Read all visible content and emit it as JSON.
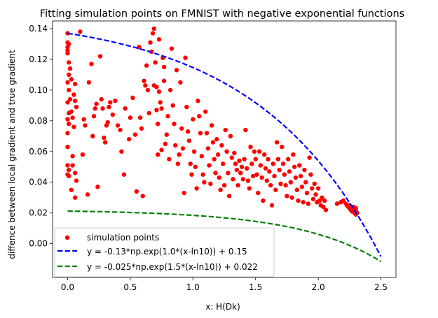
{
  "chart_data": {
    "type": "scatter",
    "title": "Fitting simulation points on FMNIST with negative exponential functions",
    "xlabel": "x: H(Dk)",
    "ylabel": "diffence between local gradient and true gradient",
    "xlim": [
      -0.12,
      2.62
    ],
    "ylim": [
      -0.022,
      0.145
    ],
    "x_ticks": [
      0.0,
      0.5,
      1.0,
      1.5,
      2.0,
      2.5
    ],
    "x_tick_labels": [
      "0.0",
      "0.5",
      "1.0",
      "1.5",
      "2.0",
      "2.5"
    ],
    "y_ticks": [
      0.0,
      0.02,
      0.04,
      0.06,
      0.08,
      0.1,
      0.12,
      0.14
    ],
    "y_tick_labels": [
      "0.00",
      "0.02",
      "0.04",
      "0.06",
      "0.08",
      "0.10",
      "0.12",
      "0.14"
    ],
    "legend_position": "lower-left",
    "series": [
      {
        "name": "simulation points",
        "kind": "scatter",
        "color": "#ff0000",
        "points": [
          [
            0.0,
            0.137
          ],
          [
            0.0,
            0.131
          ],
          [
            0.0,
            0.128
          ],
          [
            0.0,
            0.126
          ],
          [
            0.0,
            0.124
          ],
          [
            0.01,
            0.13
          ],
          [
            0.01,
            0.118
          ],
          [
            0.01,
            0.11
          ],
          [
            0.0,
            0.105
          ],
          [
            0.01,
            0.1
          ],
          [
            0.0,
            0.092
          ],
          [
            0.01,
            0.085
          ],
          [
            0.0,
            0.081
          ],
          [
            0.01,
            0.078
          ],
          [
            0.0,
            0.072
          ],
          [
            0.0,
            0.063
          ],
          [
            0.0,
            0.051
          ],
          [
            0.01,
            0.048
          ],
          [
            0.0,
            0.045
          ],
          [
            0.01,
            0.044
          ],
          [
            0.02,
            0.114
          ],
          [
            0.03,
            0.107
          ],
          [
            0.02,
            0.094
          ],
          [
            0.03,
            0.086
          ],
          [
            0.04,
            0.082
          ],
          [
            0.05,
            0.097
          ],
          [
            0.06,
            0.104
          ],
          [
            0.06,
            0.093
          ],
          [
            0.07,
            0.089
          ],
          [
            0.05,
            0.076
          ],
          [
            0.04,
            0.057
          ],
          [
            0.04,
            0.051
          ],
          [
            0.06,
            0.046
          ],
          [
            0.07,
            0.041
          ],
          [
            0.03,
            0.035
          ],
          [
            0.06,
            0.03
          ],
          [
            0.1,
            0.138
          ],
          [
            0.13,
            0.081
          ],
          [
            0.14,
            0.077
          ],
          [
            0.12,
            0.058
          ],
          [
            0.16,
            0.032
          ],
          [
            0.17,
            0.105
          ],
          [
            0.19,
            0.117
          ],
          [
            0.2,
            0.07
          ],
          [
            0.21,
            0.083
          ],
          [
            0.22,
            0.088
          ],
          [
            0.23,
            0.091
          ],
          [
            0.24,
            0.037
          ],
          [
            0.26,
            0.122
          ],
          [
            0.27,
            0.094
          ],
          [
            0.28,
            0.088
          ],
          [
            0.29,
            0.069
          ],
          [
            0.3,
            0.066
          ],
          [
            0.31,
            0.077
          ],
          [
            0.32,
            0.079
          ],
          [
            0.33,
            0.089
          ],
          [
            0.34,
            0.092
          ],
          [
            0.36,
            0.084
          ],
          [
            0.38,
            0.093
          ],
          [
            0.4,
            0.077
          ],
          [
            0.42,
            0.074
          ],
          [
            0.43,
            0.06
          ],
          [
            0.45,
            0.045
          ],
          [
            0.46,
            0.088
          ],
          [
            0.49,
            0.068
          ],
          [
            0.5,
            0.082
          ],
          [
            0.52,
            0.095
          ],
          [
            0.54,
            0.071
          ],
          [
            0.55,
            0.034
          ],
          [
            0.57,
            0.128
          ],
          [
            0.58,
            0.082
          ],
          [
            0.59,
            0.075
          ],
          [
            0.6,
            0.031
          ],
          [
            0.61,
            0.106
          ],
          [
            0.62,
            0.103
          ],
          [
            0.63,
            0.116
          ],
          [
            0.64,
            0.1
          ],
          [
            0.65,
            0.085
          ],
          [
            0.66,
            0.131
          ],
          [
            0.67,
            0.125
          ],
          [
            0.68,
            0.137
          ],
          [
            0.69,
            0.14
          ],
          [
            0.69,
            0.103
          ],
          [
            0.7,
            0.118
          ],
          [
            0.71,
            0.102
          ],
          [
            0.71,
            0.087
          ],
          [
            0.72,
            0.078
          ],
          [
            0.72,
            0.058
          ],
          [
            0.73,
            0.133
          ],
          [
            0.73,
            0.099
          ],
          [
            0.74,
            0.092
          ],
          [
            0.75,
            0.088
          ],
          [
            0.75,
            0.061
          ],
          [
            0.76,
            0.121
          ],
          [
            0.77,
            0.115
          ],
          [
            0.77,
            0.106
          ],
          [
            0.78,
            0.065
          ],
          [
            0.79,
            0.071
          ],
          [
            0.8,
            0.083
          ],
          [
            0.81,
            0.055
          ],
          [
            0.82,
            0.1
          ],
          [
            0.83,
            0.127
          ],
          [
            0.84,
            0.09
          ],
          [
            0.85,
            0.078
          ],
          [
            0.86,
            0.064
          ],
          [
            0.87,
            0.113
          ],
          [
            0.88,
            0.052
          ],
          [
            0.89,
            0.058
          ],
          [
            0.9,
            0.105
          ],
          [
            0.91,
            0.075
          ],
          [
            0.92,
            0.062
          ],
          [
            0.93,
            0.033
          ],
          [
            0.94,
            0.121
          ],
          [
            0.95,
            0.089
          ],
          [
            0.96,
            0.073
          ],
          [
            0.97,
            0.067
          ],
          [
            0.98,
            0.052
          ],
          [
            0.99,
            0.045
          ],
          [
            1.0,
            0.081
          ],
          [
            1.01,
            0.06
          ],
          [
            1.02,
            0.05
          ],
          [
            1.03,
            0.036
          ],
          [
            1.04,
            0.093
          ],
          [
            1.05,
            0.083
          ],
          [
            1.06,
            0.072
          ],
          [
            1.07,
            0.057
          ],
          [
            1.08,
            0.045
          ],
          [
            1.09,
            0.04
          ],
          [
            1.1,
            0.086
          ],
          [
            1.11,
            0.072
          ],
          [
            1.12,
            0.062
          ],
          [
            1.13,
            0.051
          ],
          [
            1.14,
            0.039
          ],
          [
            1.15,
            0.077
          ],
          [
            1.16,
            0.066
          ],
          [
            1.17,
            0.055
          ],
          [
            1.18,
            0.046
          ],
          [
            1.19,
            0.068
          ],
          [
            1.2,
            0.058
          ],
          [
            1.21,
            0.043
          ],
          [
            1.22,
            0.035
          ],
          [
            1.23,
            0.064
          ],
          [
            1.24,
            0.052
          ],
          [
            1.25,
            0.038
          ],
          [
            1.26,
            0.074
          ],
          [
            1.27,
            0.06
          ],
          [
            1.28,
            0.046
          ],
          [
            1.29,
            0.031
          ],
          [
            1.3,
            0.07
          ],
          [
            1.31,
            0.056
          ],
          [
            1.32,
            0.042
          ],
          [
            1.33,
            0.059
          ],
          [
            1.34,
            0.052
          ],
          [
            1.35,
            0.048
          ],
          [
            1.36,
            0.038
          ],
          [
            1.37,
            0.054
          ],
          [
            1.38,
            0.046
          ],
          [
            1.39,
            0.05
          ],
          [
            1.4,
            0.042
          ],
          [
            1.41,
            0.055
          ],
          [
            1.42,
            0.074
          ],
          [
            1.43,
            0.049
          ],
          [
            1.44,
            0.041
          ],
          [
            1.45,
            0.036
          ],
          [
            1.46,
            0.063
          ],
          [
            1.47,
            0.052
          ],
          [
            1.48,
            0.044
          ],
          [
            1.49,
            0.06
          ],
          [
            1.5,
            0.055
          ],
          [
            1.51,
            0.045
          ],
          [
            1.52,
            0.033
          ],
          [
            1.53,
            0.06
          ],
          [
            1.54,
            0.051
          ],
          [
            1.55,
            0.043
          ],
          [
            1.56,
            0.028
          ],
          [
            1.57,
            0.058
          ],
          [
            1.58,
            0.049
          ],
          [
            1.59,
            0.041
          ],
          [
            1.6,
            0.055
          ],
          [
            1.61,
            0.047
          ],
          [
            1.62,
            0.038
          ],
          [
            1.63,
            0.025
          ],
          [
            1.64,
            0.052
          ],
          [
            1.65,
            0.044
          ],
          [
            1.66,
            0.035
          ],
          [
            1.67,
            0.066
          ],
          [
            1.68,
            0.055
          ],
          [
            1.69,
            0.048
          ],
          [
            1.7,
            0.039
          ],
          [
            1.71,
            0.063
          ],
          [
            1.72,
            0.052
          ],
          [
            1.73,
            0.045
          ],
          [
            1.74,
            0.038
          ],
          [
            1.75,
            0.031
          ],
          [
            1.76,
            0.055
          ],
          [
            1.77,
            0.047
          ],
          [
            1.78,
            0.04
          ],
          [
            1.79,
            0.03
          ],
          [
            1.8,
            0.058
          ],
          [
            1.81,
            0.05
          ],
          [
            1.82,
            0.043
          ],
          [
            1.83,
            0.035
          ],
          [
            1.84,
            0.028
          ],
          [
            1.85,
            0.051
          ],
          [
            1.86,
            0.044
          ],
          [
            1.87,
            0.037
          ],
          [
            1.88,
            0.027
          ],
          [
            1.89,
            0.048
          ],
          [
            1.9,
            0.04
          ],
          [
            1.91,
            0.033
          ],
          [
            1.92,
            0.026
          ],
          [
            1.93,
            0.056
          ],
          [
            1.94,
            0.045
          ],
          [
            1.95,
            0.036
          ],
          [
            1.96,
            0.029
          ],
          [
            1.97,
            0.039
          ],
          [
            1.98,
            0.032
          ],
          [
            1.99,
            0.027
          ],
          [
            2.0,
            0.036
          ],
          [
            2.01,
            0.028
          ],
          [
            2.02,
            0.025
          ],
          [
            2.03,
            0.03
          ],
          [
            2.04,
            0.024
          ],
          [
            2.05,
            0.028
          ],
          [
            2.06,
            0.022
          ],
          [
            2.15,
            0.026
          ],
          [
            2.18,
            0.027
          ],
          [
            2.2,
            0.028
          ],
          [
            2.22,
            0.026
          ],
          [
            2.23,
            0.025
          ],
          [
            2.24,
            0.024
          ],
          [
            2.25,
            0.025
          ],
          [
            2.25,
            0.023
          ],
          [
            2.26,
            0.024
          ],
          [
            2.26,
            0.022
          ],
          [
            2.27,
            0.023
          ],
          [
            2.27,
            0.021
          ],
          [
            2.28,
            0.022
          ],
          [
            2.28,
            0.024
          ],
          [
            2.29,
            0.02
          ],
          [
            2.29,
            0.022
          ],
          [
            2.3,
            0.019
          ],
          [
            2.3,
            0.021
          ],
          [
            2.3,
            0.023
          ],
          [
            2.31,
            0.02
          ]
        ]
      },
      {
        "name": "y = -0.13*np.exp(1.0*(x-ln10)) + 0.15",
        "kind": "line",
        "style": "dashed",
        "color": "#0000ff",
        "x_range": [
          0.0,
          2.5
        ],
        "a": -0.13,
        "b": 1.0,
        "c": 0.15
      },
      {
        "name": "y =  -0.025*np.exp(1.5*(x-ln10)) + 0.022",
        "kind": "line",
        "style": "dashed",
        "color": "#008000",
        "x_range": [
          0.0,
          2.5
        ],
        "a": -0.025,
        "b": 1.5,
        "c": 0.022
      }
    ]
  }
}
